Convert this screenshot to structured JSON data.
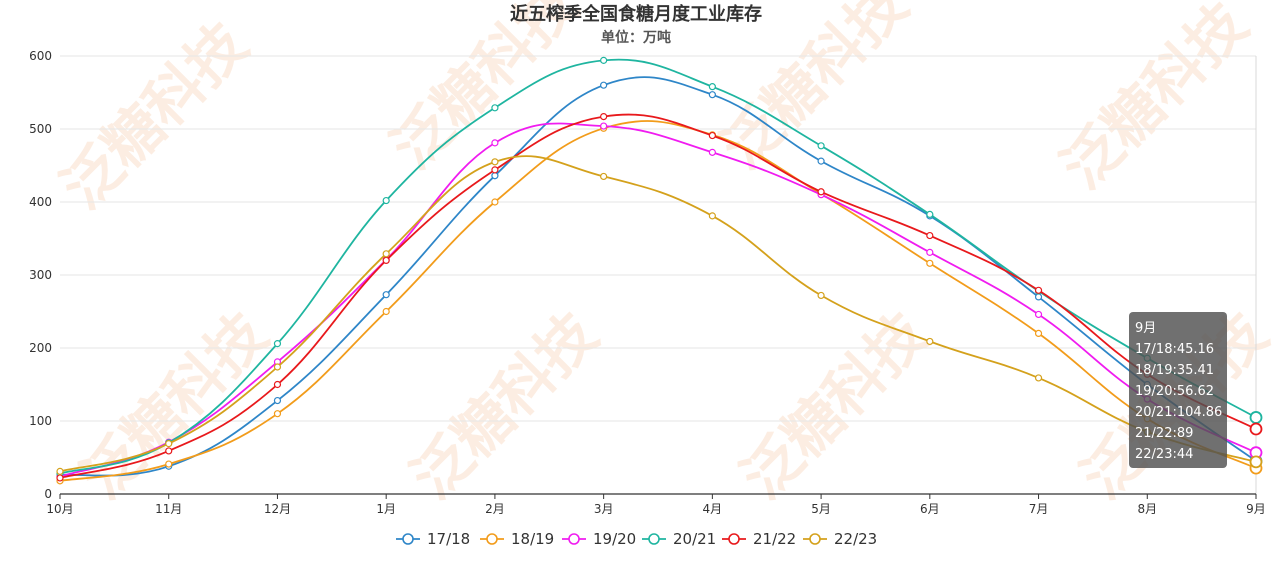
{
  "watermark": "泛糖科技",
  "chart_data": {
    "type": "line",
    "title": "近五榨季全国食糖月度工业库存",
    "subtitle": "单位：万吨",
    "categories": [
      "10月",
      "11月",
      "12月",
      "1月",
      "2月",
      "3月",
      "4月",
      "5月",
      "6月",
      "7月",
      "8月",
      "9月"
    ],
    "ylim": [
      0,
      600
    ],
    "yticks": [
      0,
      100,
      200,
      300,
      400,
      500,
      600
    ],
    "grid": true,
    "legend_position": "bottom",
    "series": [
      {
        "name": "17/18",
        "color": "#2e86c8",
        "values": [
          26,
          38,
          128,
          273,
          436,
          560,
          547,
          456,
          381,
          270,
          150,
          45.16
        ]
      },
      {
        "name": "18/19",
        "color": "#f29c1b",
        "values": [
          18,
          41,
          110,
          250,
          400,
          501,
          492,
          411,
          316,
          220,
          103,
          35.41
        ]
      },
      {
        "name": "19/20",
        "color": "#f01cf0",
        "values": [
          24,
          71,
          181,
          321,
          481,
          504,
          468,
          410,
          331,
          246,
          130,
          56.62
        ]
      },
      {
        "name": "20/21",
        "color": "#1fb5a0",
        "values": [
          28,
          70,
          206,
          402,
          529,
          594,
          558,
          477,
          383,
          278,
          186,
          104.86
        ]
      },
      {
        "name": "21/22",
        "color": "#e8191c",
        "values": [
          22,
          59,
          150,
          320,
          444,
          517,
          491,
          414,
          354,
          279,
          164,
          89
        ]
      },
      {
        "name": "22/23",
        "color": "#d4a11c",
        "values": [
          31,
          69,
          174,
          329,
          455,
          435,
          381,
          272,
          209,
          159,
          85,
          44
        ]
      }
    ],
    "tooltip": {
      "title": "9月",
      "lines": [
        "17/18:45.16",
        "18/19:35.41",
        "19/20:56.62",
        "20/21:104.86",
        "21/22:89",
        "22/23:44"
      ]
    }
  }
}
